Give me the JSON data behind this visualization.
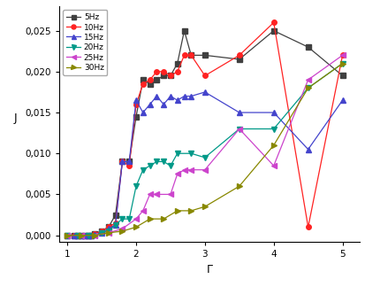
{
  "series": [
    {
      "label": "5Hz",
      "color": "#404040",
      "marker": "s",
      "markersize": 4,
      "x": [
        1.0,
        1.1,
        1.15,
        1.2,
        1.25,
        1.3,
        1.35,
        1.4,
        1.5,
        1.6,
        1.7,
        1.8,
        1.9,
        2.0,
        2.1,
        2.2,
        2.3,
        2.4,
        2.5,
        2.6,
        2.7,
        2.8,
        3.0,
        3.5,
        4.0,
        4.5,
        5.0
      ],
      "y": [
        0.0,
        0.0,
        0.0,
        0.0,
        0.0,
        0.0,
        0.0,
        0.0002,
        0.0005,
        0.001,
        0.0025,
        0.009,
        0.009,
        0.0145,
        0.019,
        0.0185,
        0.019,
        0.0195,
        0.0195,
        0.021,
        0.025,
        0.022,
        0.022,
        0.0215,
        0.025,
        0.023,
        0.0195
      ]
    },
    {
      "label": "10Hz",
      "color": "#ff2222",
      "marker": "o",
      "markersize": 4,
      "x": [
        1.0,
        1.1,
        1.15,
        1.2,
        1.25,
        1.3,
        1.35,
        1.4,
        1.5,
        1.6,
        1.7,
        1.8,
        1.9,
        2.0,
        2.1,
        2.2,
        2.3,
        2.4,
        2.5,
        2.6,
        2.7,
        2.8,
        3.0,
        3.5,
        4.0,
        4.5,
        5.0
      ],
      "y": [
        0.0,
        0.0,
        0.0,
        0.0,
        0.0,
        0.0,
        0.0,
        0.0002,
        0.0005,
        0.001,
        0.0015,
        0.009,
        0.0085,
        0.016,
        0.0185,
        0.019,
        0.02,
        0.02,
        0.0195,
        0.02,
        0.022,
        0.022,
        0.0195,
        0.022,
        0.026,
        0.001,
        0.022
      ]
    },
    {
      "label": "15Hz",
      "color": "#4444cc",
      "marker": "^",
      "markersize": 4,
      "x": [
        1.0,
        1.1,
        1.15,
        1.2,
        1.25,
        1.3,
        1.35,
        1.4,
        1.5,
        1.6,
        1.7,
        1.8,
        1.9,
        2.0,
        2.1,
        2.2,
        2.3,
        2.4,
        2.5,
        2.6,
        2.7,
        2.8,
        3.0,
        3.5,
        4.0,
        4.5,
        5.0
      ],
      "y": [
        0.0,
        0.0,
        0.0,
        0.0,
        0.0,
        0.0,
        0.0,
        0.0001,
        0.0003,
        0.0008,
        0.0013,
        0.009,
        0.009,
        0.0165,
        0.015,
        0.016,
        0.017,
        0.016,
        0.017,
        0.0165,
        0.017,
        0.017,
        0.0175,
        0.015,
        0.015,
        0.0105,
        0.0165
      ]
    },
    {
      "label": "20Hz",
      "color": "#009988",
      "marker": "v",
      "markersize": 4,
      "x": [
        1.0,
        1.15,
        1.3,
        1.5,
        1.6,
        1.7,
        1.8,
        1.9,
        2.0,
        2.1,
        2.2,
        2.3,
        2.4,
        2.5,
        2.6,
        2.8,
        3.0,
        3.5,
        4.0,
        4.5,
        5.0
      ],
      "y": [
        0.0,
        0.0,
        0.0,
        0.0003,
        0.0005,
        0.0013,
        0.002,
        0.002,
        0.006,
        0.008,
        0.0085,
        0.009,
        0.009,
        0.0085,
        0.01,
        0.01,
        0.0095,
        0.013,
        0.013,
        0.018,
        0.021
      ]
    },
    {
      "label": "25Hz",
      "color": "#cc44cc",
      "marker": "<",
      "markersize": 4,
      "x": [
        1.0,
        1.2,
        1.4,
        1.6,
        1.8,
        2.0,
        2.1,
        2.2,
        2.3,
        2.5,
        2.6,
        2.7,
        2.8,
        3.0,
        3.5,
        4.0,
        4.5,
        5.0
      ],
      "y": [
        0.0,
        0.0,
        0.0,
        0.0003,
        0.0008,
        0.002,
        0.003,
        0.005,
        0.005,
        0.005,
        0.0075,
        0.008,
        0.008,
        0.008,
        0.013,
        0.0085,
        0.019,
        0.022
      ]
    },
    {
      "label": "30Hz",
      "color": "#888800",
      "marker": ">",
      "markersize": 4,
      "x": [
        1.0,
        1.2,
        1.4,
        1.6,
        1.8,
        2.0,
        2.2,
        2.4,
        2.6,
        2.8,
        3.0,
        3.5,
        4.0,
        4.5,
        5.0
      ],
      "y": [
        0.0,
        0.0,
        0.0,
        0.0003,
        0.0005,
        0.001,
        0.002,
        0.002,
        0.003,
        0.003,
        0.0035,
        0.006,
        0.011,
        0.018,
        0.021
      ]
    }
  ],
  "xlabel": "Γ",
  "ylabel": "J",
  "xlim": [
    0.88,
    5.25
  ],
  "ylim": [
    -0.0008,
    0.028
  ],
  "xticks": [
    1,
    2,
    3,
    4,
    5
  ],
  "yticks": [
    0.0,
    0.005,
    0.01,
    0.015,
    0.02,
    0.025
  ],
  "ytick_labels": [
    "0,000",
    "0,005",
    "0,010",
    "0,015",
    "0,020",
    "0,025"
  ],
  "background_color": "#ffffff",
  "figsize": [
    4.14,
    3.24
  ],
  "dpi": 100
}
